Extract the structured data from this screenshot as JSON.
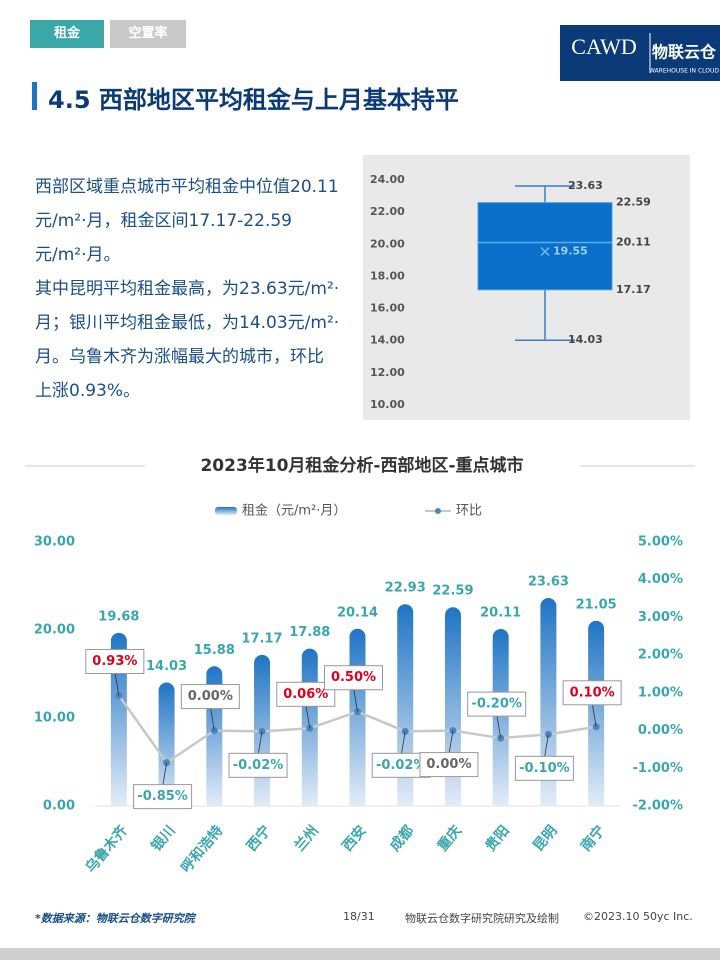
{
  "tabs": [
    "租金",
    "空置率"
  ],
  "logo": {
    "text": "CAWD",
    "brand": "物联云仓",
    "tagline": "WAREHOUSE IN CLOUD"
  },
  "heading": "4.5 西部地区平均租金与上月基本持平",
  "paragraphs": [
    "西部区域重点城市平均租金中位值20.11元/m²·月，租金区间17.17-22.59元/m²·月。",
    "其中昆明平均租金最高，为23.63元/m²·月；银川平均租金最低，为14.03元/m²·月。乌鲁木齐为涨幅最大的城市，环比上涨0.93%。"
  ],
  "chart_data": [
    {
      "type": "box",
      "color": "#0a6fc8",
      "box": {
        "min": 14.03,
        "q1": 17.17,
        "median": 20.11,
        "q3": 22.59,
        "max": 23.63,
        "mean": 19.55
      },
      "ylim": [
        10,
        24
      ],
      "yticks": [
        {
          "value": 10,
          "label": "10.00"
        },
        {
          "value": 12,
          "label": "12.00"
        },
        {
          "value": 14,
          "label": "14.00"
        },
        {
          "value": 16,
          "label": "16.00"
        },
        {
          "value": 18,
          "label": "18.00"
        },
        {
          "value": 20,
          "label": "20.00"
        },
        {
          "value": 22,
          "label": "22.00"
        },
        {
          "value": 24,
          "label": "24.00"
        }
      ]
    },
    {
      "type": "combo",
      "title": "2023年10月租金分析-西部地区-重点城市",
      "categories": [
        "乌鲁木齐",
        "银川",
        "呼和浩特",
        "西宁",
        "兰州",
        "西安",
        "成都",
        "重庆",
        "贵阳",
        "昆明",
        "南宁"
      ],
      "series": [
        {
          "name": "租金（元/m²·月）",
          "color": "#1f74c4",
          "values": [
            19.68,
            14.03,
            15.88,
            17.17,
            17.88,
            20.14,
            22.93,
            22.59,
            20.11,
            23.63,
            21.05
          ]
        },
        {
          "name": "环比",
          "color": "#c8c8c8",
          "axis": "y2",
          "values": [
            0.93,
            -0.85,
            0,
            -0.02,
            0.06,
            0.5,
            -0.02,
            0,
            -0.2,
            -0.1,
            0.1
          ],
          "value_labels": [
            "0.93%",
            "-0.85%",
            "0.00%",
            "-0.02%",
            "0.06%",
            "0.50%",
            "-0.02%",
            "0.00%",
            "-0.20%",
            "-0.10%",
            "0.10%"
          ]
        }
      ],
      "ylim": [
        0,
        30
      ],
      "yticks": [
        {
          "value": 0,
          "label": "0.00"
        },
        {
          "value": 10,
          "label": "10.00"
        },
        {
          "value": 20,
          "label": "20.00"
        },
        {
          "value": 30,
          "label": "30.00"
        }
      ],
      "y2lim": [
        -2,
        5
      ],
      "y2ticks": [
        {
          "value": -2,
          "label": "-2.00%"
        },
        {
          "value": -1,
          "label": "-1.00%"
        },
        {
          "value": 0,
          "label": "0.00%"
        },
        {
          "value": 1,
          "label": "1.00%"
        },
        {
          "value": 2,
          "label": "2.00%"
        },
        {
          "value": 3,
          "label": "3.00%"
        },
        {
          "value": 4,
          "label": "4.00%"
        },
        {
          "value": 5,
          "label": "5.00%"
        }
      ]
    }
  ],
  "footer": {
    "source": "*数据来源：物联云仓数字研究院",
    "page": "18/31",
    "credit": "物联云仓数字研究院研究及绘制",
    "copyright": "©2023.10 50yc Inc."
  }
}
